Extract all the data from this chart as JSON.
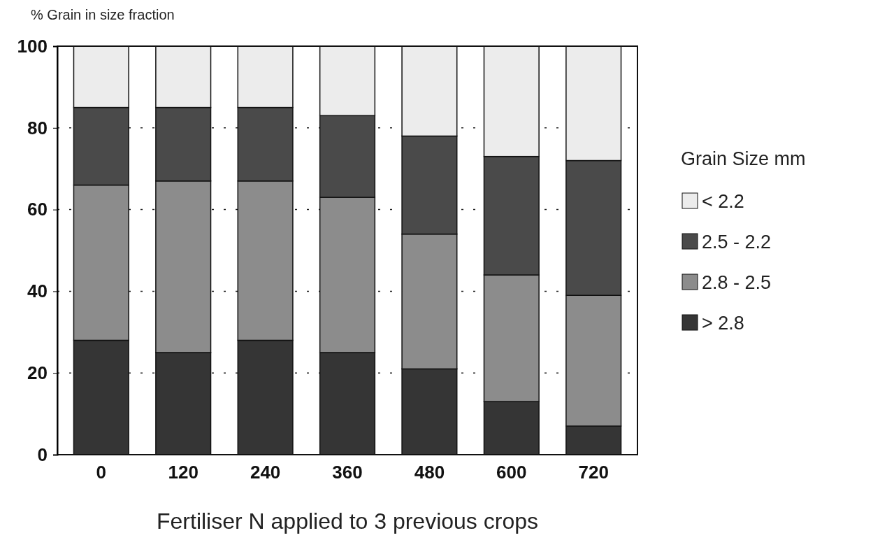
{
  "chart_data": {
    "type": "bar",
    "stacked": true,
    "ylabel": "% Grain in size fraction",
    "xlabel": "Fertiliser N applied to 3 previous crops",
    "legend_title": "Grain Size mm",
    "categories": [
      "0",
      "120",
      "240",
      "360",
      "480",
      "600",
      "720"
    ],
    "series": [
      {
        "name": "> 2.8",
        "color": "#353535",
        "values": [
          28,
          25,
          28,
          25,
          21,
          13,
          7
        ]
      },
      {
        "name": "2.8 - 2.5",
        "color": "#8c8c8c",
        "values": [
          38,
          42,
          39,
          38,
          33,
          31,
          32
        ]
      },
      {
        "name": "2.5 - 2.2",
        "color": "#4a4a4a",
        "values": [
          19,
          18,
          18,
          20,
          24,
          29,
          33
        ]
      },
      {
        "name": "< 2.2",
        "color": "#ececec",
        "values": [
          15,
          15,
          15,
          17,
          22,
          27,
          28
        ]
      }
    ],
    "ylim": [
      0,
      100
    ],
    "yticks": [
      0,
      20,
      40,
      60,
      80,
      100
    ],
    "grid": "y",
    "legend": "right"
  }
}
